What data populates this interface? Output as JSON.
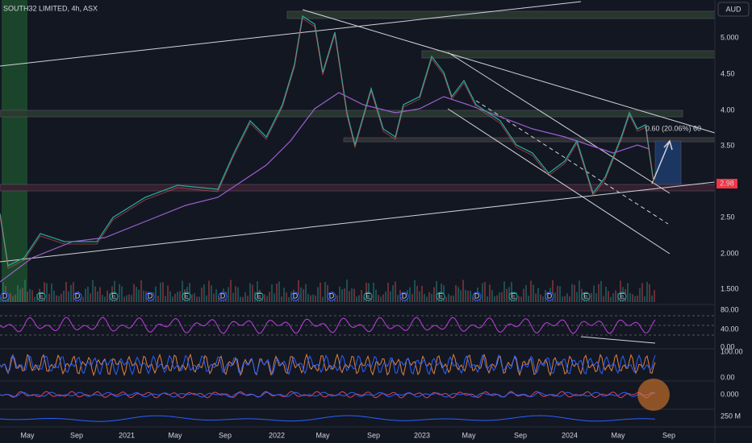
{
  "header": {
    "symbol": "SOUTH32 LIMITED, 4h, ASX",
    "currency": "AUD"
  },
  "price_axis": {
    "labels": [
      "5.000",
      "4.50",
      "4.00",
      "3.50",
      "2.50",
      "2.000",
      "1.500"
    ],
    "last_price": "2.98"
  },
  "annotation": {
    "measure": "0.60 (20.06%) 60"
  },
  "events": [
    "D",
    "E",
    "D",
    "E",
    "D",
    "E",
    "D",
    "E",
    "D",
    "D",
    "E",
    "D",
    "E",
    "D",
    "E",
    "D",
    "E",
    "E"
  ],
  "panels": {
    "rsi": [
      "80.00",
      "40.00",
      "0.00"
    ],
    "stoch": [
      "100.00",
      "0.00"
    ],
    "macd": [
      "0.000"
    ],
    "volume": [
      "250 M"
    ]
  },
  "time_axis": [
    "May",
    "Sep",
    "2021",
    "May",
    "Sep",
    "2022",
    "May",
    "Sep",
    "2023",
    "May",
    "Sep",
    "2024",
    "May",
    "Sep"
  ]
}
